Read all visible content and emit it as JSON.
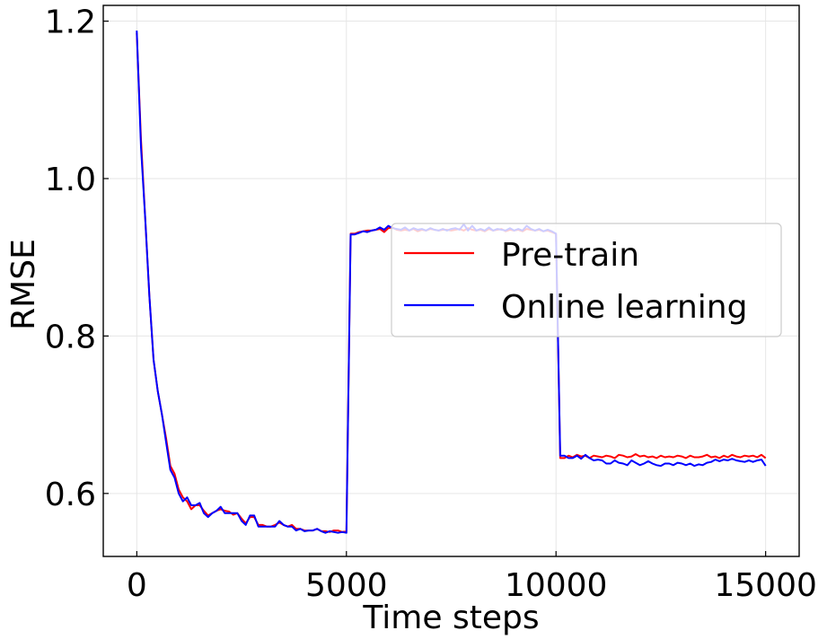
{
  "chart_data": {
    "type": "line",
    "xlabel": "Time steps",
    "ylabel": "RMSE",
    "xlim": [
      -800,
      15800
    ],
    "ylim": [
      0.52,
      1.22
    ],
    "xticks": [
      0,
      5000,
      10000,
      15000
    ],
    "xtick_labels": [
      "0",
      "5000",
      "10000",
      "15000"
    ],
    "yticks": [
      0.6,
      0.8,
      1.0,
      1.2
    ],
    "ytick_labels": [
      "0.6",
      "0.8",
      "1.0",
      "1.2"
    ],
    "grid": true,
    "legend_position": "right",
    "x": [
      0,
      100,
      200,
      300,
      400,
      500,
      600,
      700,
      800,
      900,
      1000,
      1100,
      1200,
      1300,
      1400,
      1500,
      1600,
      1700,
      1800,
      1900,
      2000,
      2100,
      2200,
      2300,
      2400,
      2500,
      2600,
      2700,
      2800,
      2900,
      3000,
      3100,
      3200,
      3300,
      3400,
      3500,
      3600,
      3700,
      3800,
      3900,
      4000,
      4100,
      4200,
      4300,
      4400,
      4500,
      4600,
      4700,
      4800,
      4900,
      5000,
      5100,
      5200,
      5300,
      5400,
      5500,
      5600,
      5700,
      5800,
      5900,
      6000,
      6100,
      6200,
      6300,
      6400,
      6500,
      6600,
      6700,
      6800,
      6900,
      7000,
      7100,
      7200,
      7300,
      7400,
      7500,
      7600,
      7700,
      7800,
      7900,
      8000,
      8100,
      8200,
      8300,
      8400,
      8500,
      8600,
      8700,
      8800,
      8900,
      9000,
      9100,
      9200,
      9300,
      9400,
      9500,
      9600,
      9700,
      9800,
      9900,
      10000,
      10100,
      10200,
      10300,
      10400,
      10500,
      10600,
      10700,
      10800,
      10900,
      11000,
      11100,
      11200,
      11300,
      11400,
      11500,
      11600,
      11700,
      11800,
      11900,
      12000,
      12100,
      12200,
      12300,
      12400,
      12500,
      12600,
      12700,
      12800,
      12900,
      13000,
      13100,
      13200,
      13300,
      13400,
      13500,
      13600,
      13700,
      13800,
      13900,
      14000,
      14100,
      14200,
      14300,
      14400,
      14500,
      14600,
      14700,
      14800,
      14900,
      15000
    ],
    "series": [
      {
        "name": "Pre-train",
        "color": "#ff0000",
        "values": [
          1.185,
          1.05,
          0.95,
          0.85,
          0.77,
          0.73,
          0.7,
          0.67,
          0.635,
          0.625,
          0.605,
          0.595,
          0.59,
          0.58,
          0.585,
          0.585,
          0.578,
          0.572,
          0.575,
          0.578,
          0.58,
          0.578,
          0.577,
          0.573,
          0.575,
          0.568,
          0.562,
          0.57,
          0.57,
          0.56,
          0.56,
          0.558,
          0.558,
          0.56,
          0.563,
          0.56,
          0.558,
          0.56,
          0.555,
          0.555,
          0.553,
          0.553,
          0.553,
          0.555,
          0.552,
          0.552,
          0.551,
          0.553,
          0.553,
          0.551,
          0.552,
          0.93,
          0.93,
          0.932,
          0.933,
          0.934,
          0.934,
          0.935,
          0.936,
          0.932,
          0.937,
          0.938,
          0.935,
          0.934,
          0.935,
          0.934,
          0.936,
          0.933,
          0.935,
          0.934,
          0.936,
          0.935,
          0.934,
          0.935,
          0.935,
          0.934,
          0.935,
          0.936,
          0.934,
          0.937,
          0.935,
          0.934,
          0.935,
          0.933,
          0.936,
          0.934,
          0.935,
          0.936,
          0.933,
          0.935,
          0.934,
          0.935,
          0.933,
          0.936,
          0.935,
          0.934,
          0.935,
          0.933,
          0.934,
          0.932,
          0.93,
          0.645,
          0.645,
          0.648,
          0.646,
          0.649,
          0.647,
          0.648,
          0.645,
          0.648,
          0.647,
          0.646,
          0.648,
          0.647,
          0.645,
          0.649,
          0.648,
          0.646,
          0.647,
          0.65,
          0.647,
          0.648,
          0.646,
          0.647,
          0.645,
          0.648,
          0.646,
          0.647,
          0.646,
          0.648,
          0.647,
          0.645,
          0.648,
          0.646,
          0.646,
          0.647,
          0.649,
          0.646,
          0.647,
          0.645,
          0.648,
          0.646,
          0.649,
          0.647,
          0.646,
          0.648,
          0.647,
          0.648,
          0.646,
          0.649,
          0.645
        ]
      },
      {
        "name": "Online learning",
        "color": "#0000ff",
        "values": [
          1.188,
          1.04,
          0.95,
          0.85,
          0.77,
          0.73,
          0.7,
          0.665,
          0.63,
          0.62,
          0.6,
          0.59,
          0.595,
          0.585,
          0.585,
          0.588,
          0.575,
          0.57,
          0.575,
          0.578,
          0.583,
          0.575,
          0.575,
          0.575,
          0.575,
          0.565,
          0.56,
          0.572,
          0.572,
          0.558,
          0.558,
          0.558,
          0.558,
          0.558,
          0.565,
          0.56,
          0.558,
          0.558,
          0.553,
          0.555,
          0.552,
          0.553,
          0.553,
          0.555,
          0.552,
          0.55,
          0.552,
          0.551,
          0.55,
          0.551,
          0.55,
          0.929,
          0.929,
          0.931,
          0.933,
          0.932,
          0.934,
          0.935,
          0.938,
          0.935,
          0.94,
          0.937,
          0.936,
          0.935,
          0.938,
          0.934,
          0.937,
          0.935,
          0.936,
          0.934,
          0.937,
          0.935,
          0.934,
          0.936,
          0.934,
          0.936,
          0.937,
          0.935,
          0.942,
          0.934,
          0.94,
          0.934,
          0.936,
          0.934,
          0.938,
          0.934,
          0.936,
          0.935,
          0.934,
          0.937,
          0.934,
          0.936,
          0.934,
          0.94,
          0.936,
          0.934,
          0.936,
          0.933,
          0.935,
          0.933,
          0.93,
          0.648,
          0.648,
          0.645,
          0.645,
          0.648,
          0.644,
          0.649,
          0.645,
          0.642,
          0.643,
          0.642,
          0.638,
          0.638,
          0.642,
          0.639,
          0.638,
          0.636,
          0.642,
          0.639,
          0.636,
          0.638,
          0.641,
          0.638,
          0.636,
          0.635,
          0.638,
          0.638,
          0.636,
          0.639,
          0.638,
          0.636,
          0.638,
          0.635,
          0.637,
          0.636,
          0.639,
          0.64,
          0.643,
          0.641,
          0.643,
          0.642,
          0.644,
          0.642,
          0.641,
          0.64,
          0.642,
          0.64,
          0.642,
          0.643,
          0.635
        ]
      }
    ]
  }
}
